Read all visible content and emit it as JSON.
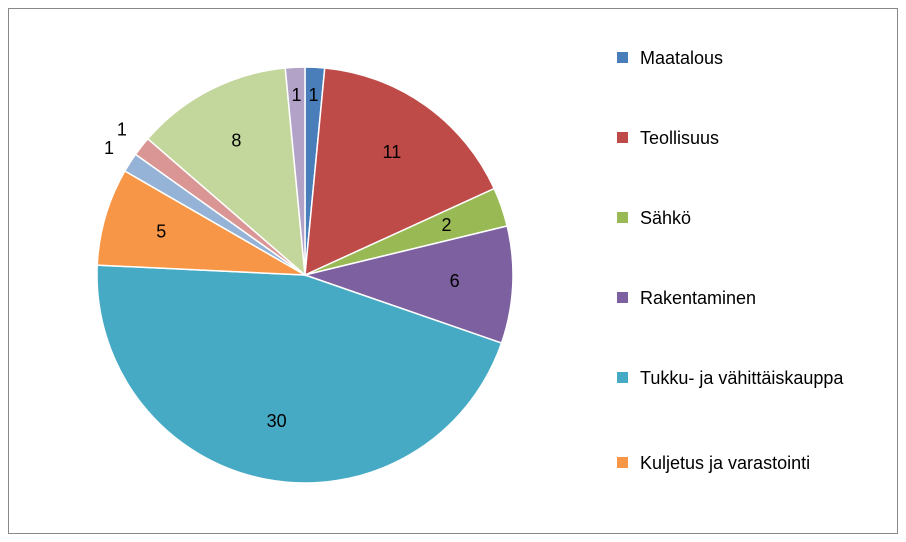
{
  "chart_data": {
    "type": "pie",
    "categories": [
      "Maatalous",
      "Teollisuus",
      "Sähkö",
      "Rakentaminen",
      "Tukku- ja vähittäiskauppa",
      "Kuljetus ja varastointi",
      null,
      null,
      null,
      null
    ],
    "values": [
      1,
      11,
      2,
      6,
      30,
      5,
      1,
      1,
      8,
      1
    ],
    "colors": [
      "#4a7ebb",
      "#be4b48",
      "#98b954",
      "#7d60a0",
      "#46aac5",
      "#f79646",
      "#95b3d7",
      "#da9694",
      "#c3d69b",
      "#b3a2c7"
    ],
    "legend": "right"
  }
}
